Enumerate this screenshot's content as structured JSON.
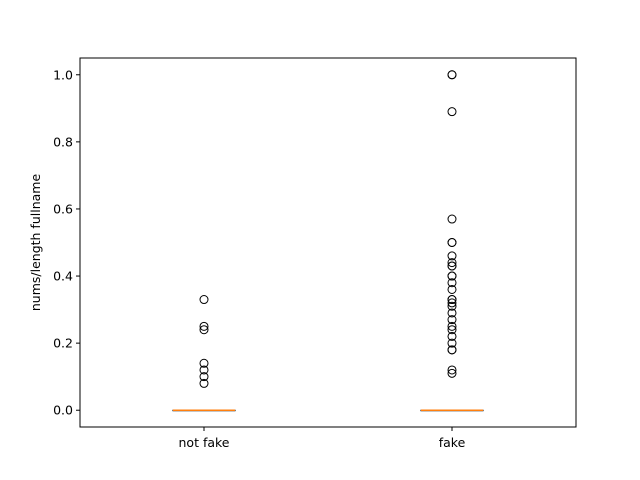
{
  "chart_data": {
    "type": "box",
    "title": "",
    "xlabel": "",
    "ylabel": "nums/length fullname",
    "ylim": [
      -0.05,
      1.05
    ],
    "yticks": [
      0.0,
      0.2,
      0.4,
      0.6,
      0.8,
      1.0
    ],
    "ytick_labels": [
      "0.0",
      "0.2",
      "0.4",
      "0.6",
      "0.8",
      "1.0"
    ],
    "categories": [
      "not fake",
      "fake"
    ],
    "grid": false,
    "colors": {
      "median": "#ff7f0e",
      "box": "#000000",
      "flier": "#000000",
      "frame": "#000000"
    },
    "boxes": [
      {
        "name": "not fake",
        "q1": 0.0,
        "median": 0.0,
        "q3": 0.0,
        "whisker_low": 0.0,
        "whisker_high": 0.0,
        "outliers": [
          0.33,
          0.25,
          0.24,
          0.14,
          0.12,
          0.1,
          0.08
        ]
      },
      {
        "name": "fake",
        "q1": 0.0,
        "median": 0.0,
        "q3": 0.0,
        "whisker_low": 0.0,
        "whisker_high": 0.0,
        "outliers": [
          1.0,
          1.0,
          0.89,
          0.57,
          0.5,
          0.5,
          0.46,
          0.44,
          0.43,
          0.43,
          0.4,
          0.4,
          0.38,
          0.36,
          0.33,
          0.33,
          0.32,
          0.31,
          0.29,
          0.27,
          0.25,
          0.24,
          0.22,
          0.2,
          0.18,
          0.18,
          0.12,
          0.11
        ]
      }
    ]
  }
}
